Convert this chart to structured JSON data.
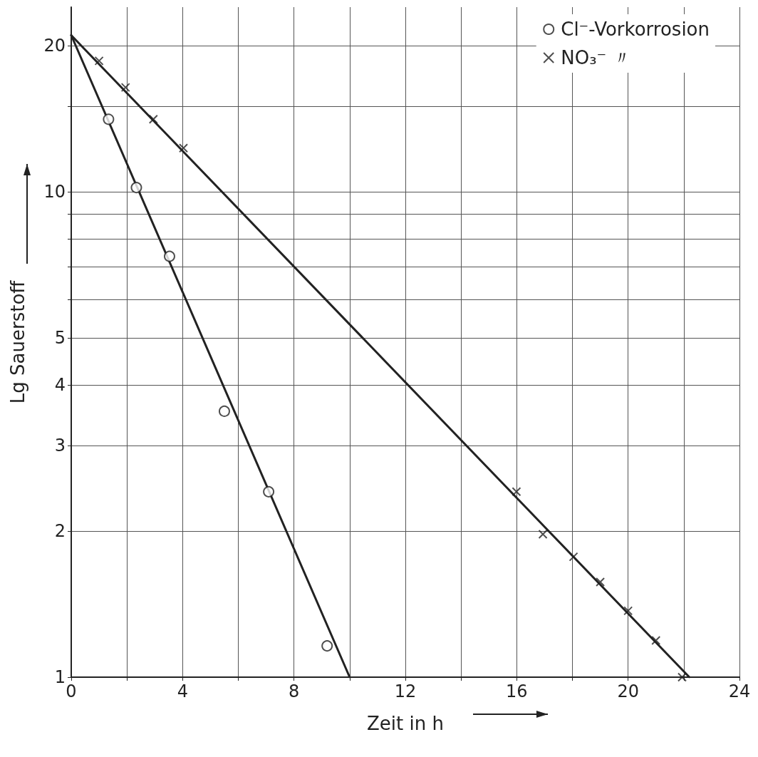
{
  "chart_data": {
    "type": "scatter",
    "xlabel": "Zeit in h",
    "ylabel": "Lg Sauerstoff",
    "log": "y",
    "grid": true,
    "legend": "top right",
    "xlim": [
      0,
      24
    ],
    "xticks": [
      0,
      {
        "value": 2,
        "label": null
      },
      4,
      {
        "value": 6,
        "label": null
      },
      8,
      {
        "value": 10,
        "label": null
      },
      12,
      {
        "value": 14,
        "label": null
      },
      16,
      {
        "value": 18,
        "label": null
      },
      20,
      {
        "value": 22,
        "label": null
      },
      24
    ],
    "ylim": [
      1,
      24
    ],
    "yticks": [
      1,
      2,
      3,
      4,
      5,
      {
        "value": 6,
        "label": null
      },
      {
        "value": 7,
        "label": null
      },
      {
        "value": 8,
        "label": null
      },
      {
        "value": 9,
        "label": null
      },
      10,
      {
        "value": 15,
        "label": null
      },
      20
    ],
    "series": [
      {
        "name": "Cl⁻-Vorkorrosion",
        "marker": "circle",
        "color": "#222222",
        "x": [
          1.34,
          2.34,
          3.53,
          5.5,
          7.09,
          9.19
        ],
        "values": [
          14.1,
          10.2,
          7.36,
          3.53,
          2.41,
          1.16
        ]
      },
      {
        "name": "NO₃⁻ 〃",
        "marker": "cross",
        "color": "#222222",
        "x": [
          1.0,
          1.95,
          2.95,
          4.03,
          15.99,
          16.94,
          18.04,
          19.0,
          20.0,
          21.0,
          21.94
        ],
        "values": [
          18.6,
          16.4,
          14.1,
          12.3,
          2.41,
          1.97,
          1.77,
          1.57,
          1.37,
          1.19,
          1.0
        ]
      },
      {
        "type": "line",
        "marker": "none",
        "line_style": "solid",
        "color": "#222222",
        "x": [
          0,
          10
        ],
        "values": [
          21,
          1
        ]
      },
      {
        "type": "line",
        "marker": "none",
        "line_style": "solid",
        "color": "#222222",
        "x": [
          0,
          22.2
        ],
        "values": [
          21,
          1
        ]
      }
    ]
  }
}
